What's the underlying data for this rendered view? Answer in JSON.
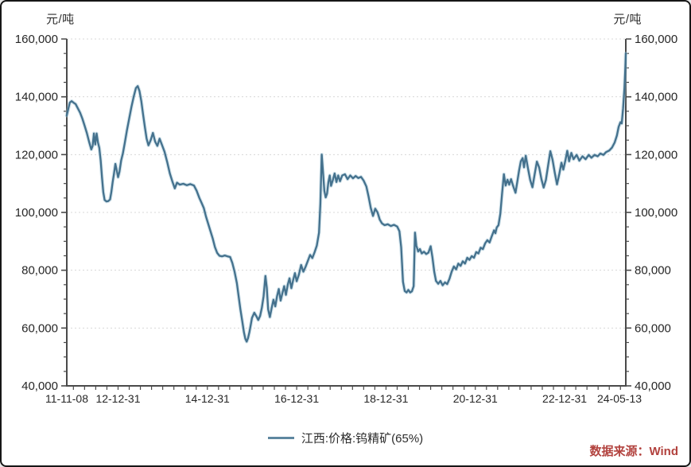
{
  "chart": {
    "unit_left": "元/吨",
    "unit_right": "元/吨"
  },
  "legend": {
    "label": "江西:价格:钨精矿(65%)",
    "color": "#5e87a0"
  },
  "source": {
    "label": "数据来源：Wind",
    "color": "#b2423e"
  },
  "axes": {
    "y_tick_labels": [
      "160,000",
      "140,000",
      "120,000",
      "100,000",
      "80,000",
      "60,000",
      "40,000"
    ],
    "y_tick_values": [
      160000,
      140000,
      120000,
      100000,
      80000,
      60000,
      40000
    ],
    "y_minor_step": 5000,
    "x_ticks": [
      {
        "label": "11-11-08",
        "year": 2011.852
      },
      {
        "label": "12-12-31",
        "year": 2013.0
      },
      {
        "label": "14-12-31",
        "year": 2015.0
      },
      {
        "label": "16-12-31",
        "year": 2017.0
      },
      {
        "label": "18-12-31",
        "year": 2019.0
      },
      {
        "label": "20-12-31",
        "year": 2021.0
      },
      {
        "label": "22-12-31",
        "year": 2023.0
      },
      {
        "label": "24-05-13",
        "year": 2024.37
      }
    ],
    "x_minor_step_years": 0.25
  },
  "chart_data": {
    "type": "line",
    "title": "",
    "xlabel": "",
    "ylabel": "元/吨",
    "ylim": [
      40000,
      160000
    ],
    "x_range_years": [
      2011.852,
      2024.37
    ],
    "x_range_dates": [
      "11-11-08",
      "24-05-13"
    ],
    "grid": "horizontal-dotted",
    "legend_position": "bottom-center",
    "line_color": "#44718d",
    "series": [
      {
        "name": "江西:价格:钨精矿(65%)",
        "points": [
          [
            2011.85,
            133500
          ],
          [
            2011.88,
            135500
          ],
          [
            2011.92,
            138000
          ],
          [
            2011.96,
            138500
          ],
          [
            2012.0,
            138000
          ],
          [
            2012.05,
            137500
          ],
          [
            2012.1,
            136000
          ],
          [
            2012.15,
            134500
          ],
          [
            2012.2,
            132500
          ],
          [
            2012.25,
            130000
          ],
          [
            2012.3,
            127500
          ],
          [
            2012.35,
            124500
          ],
          [
            2012.4,
            121800
          ],
          [
            2012.43,
            123000
          ],
          [
            2012.46,
            127300
          ],
          [
            2012.49,
            123500
          ],
          [
            2012.52,
            127300
          ],
          [
            2012.55,
            124200
          ],
          [
            2012.58,
            122300
          ],
          [
            2012.61,
            118000
          ],
          [
            2012.64,
            112000
          ],
          [
            2012.67,
            107000
          ],
          [
            2012.7,
            104300
          ],
          [
            2012.74,
            103800
          ],
          [
            2012.78,
            103900
          ],
          [
            2012.82,
            104500
          ],
          [
            2012.85,
            107000
          ],
          [
            2012.88,
            110500
          ],
          [
            2012.91,
            113500
          ],
          [
            2012.94,
            116800
          ],
          [
            2012.97,
            114500
          ],
          [
            2013.0,
            112200
          ],
          [
            2013.03,
            114000
          ],
          [
            2013.07,
            118000
          ],
          [
            2013.11,
            120500
          ],
          [
            2013.15,
            124000
          ],
          [
            2013.2,
            128500
          ],
          [
            2013.25,
            132500
          ],
          [
            2013.3,
            136500
          ],
          [
            2013.35,
            140000
          ],
          [
            2013.4,
            143000
          ],
          [
            2013.44,
            143700
          ],
          [
            2013.48,
            142000
          ],
          [
            2013.52,
            138500
          ],
          [
            2013.56,
            134000
          ],
          [
            2013.6,
            129500
          ],
          [
            2013.64,
            125500
          ],
          [
            2013.68,
            123200
          ],
          [
            2013.73,
            125000
          ],
          [
            2013.78,
            127500
          ],
          [
            2013.83,
            124500
          ],
          [
            2013.88,
            123000
          ],
          [
            2013.93,
            125500
          ],
          [
            2013.98,
            123500
          ],
          [
            2014.04,
            121000
          ],
          [
            2014.1,
            117500
          ],
          [
            2014.16,
            113500
          ],
          [
            2014.22,
            110500
          ],
          [
            2014.27,
            108300
          ],
          [
            2014.32,
            110300
          ],
          [
            2014.38,
            109600
          ],
          [
            2014.46,
            109900
          ],
          [
            2014.54,
            109400
          ],
          [
            2014.62,
            109800
          ],
          [
            2014.7,
            109300
          ],
          [
            2014.76,
            107500
          ],
          [
            2014.82,
            105000
          ],
          [
            2014.87,
            103300
          ],
          [
            2014.92,
            101500
          ],
          [
            2014.97,
            98500
          ],
          [
            2015.02,
            96000
          ],
          [
            2015.07,
            93500
          ],
          [
            2015.12,
            91000
          ],
          [
            2015.17,
            88000
          ],
          [
            2015.22,
            86000
          ],
          [
            2015.27,
            85000
          ],
          [
            2015.33,
            84800
          ],
          [
            2015.39,
            85100
          ],
          [
            2015.45,
            84800
          ],
          [
            2015.51,
            84600
          ],
          [
            2015.56,
            82500
          ],
          [
            2015.61,
            79500
          ],
          [
            2015.66,
            75500
          ],
          [
            2015.7,
            71000
          ],
          [
            2015.74,
            66500
          ],
          [
            2015.78,
            62500
          ],
          [
            2015.82,
            58500
          ],
          [
            2015.85,
            56300
          ],
          [
            2015.88,
            55300
          ],
          [
            2015.91,
            56500
          ],
          [
            2015.94,
            58500
          ],
          [
            2015.97,
            61000
          ],
          [
            2016.0,
            63500
          ],
          [
            2016.05,
            65300
          ],
          [
            2016.1,
            64000
          ],
          [
            2016.14,
            62800
          ],
          [
            2016.18,
            64200
          ],
          [
            2016.22,
            67000
          ],
          [
            2016.26,
            71000
          ],
          [
            2016.3,
            78000
          ],
          [
            2016.33,
            74000
          ],
          [
            2016.36,
            66500
          ],
          [
            2016.4,
            63800
          ],
          [
            2016.44,
            67000
          ],
          [
            2016.48,
            69800
          ],
          [
            2016.52,
            67500
          ],
          [
            2016.56,
            71000
          ],
          [
            2016.6,
            73500
          ],
          [
            2016.64,
            69500
          ],
          [
            2016.68,
            72000
          ],
          [
            2016.72,
            74500
          ],
          [
            2016.76,
            71500
          ],
          [
            2016.8,
            75000
          ],
          [
            2016.84,
            77200
          ],
          [
            2016.88,
            73800
          ],
          [
            2016.92,
            76500
          ],
          [
            2016.96,
            79000
          ],
          [
            2017.0,
            76200
          ],
          [
            2017.05,
            78500
          ],
          [
            2017.1,
            81800
          ],
          [
            2017.15,
            79500
          ],
          [
            2017.2,
            81200
          ],
          [
            2017.25,
            83200
          ],
          [
            2017.3,
            85300
          ],
          [
            2017.35,
            84200
          ],
          [
            2017.4,
            86200
          ],
          [
            2017.45,
            88500
          ],
          [
            2017.5,
            93000
          ],
          [
            2017.53,
            103000
          ],
          [
            2017.56,
            120000
          ],
          [
            2017.59,
            114000
          ],
          [
            2017.62,
            107500
          ],
          [
            2017.65,
            105200
          ],
          [
            2017.68,
            106500
          ],
          [
            2017.71,
            110500
          ],
          [
            2017.74,
            112800
          ],
          [
            2017.77,
            109200
          ],
          [
            2017.81,
            111200
          ],
          [
            2017.85,
            113500
          ],
          [
            2017.89,
            110500
          ],
          [
            2017.93,
            112800
          ],
          [
            2017.97,
            110800
          ],
          [
            2018.02,
            112800
          ],
          [
            2018.08,
            113200
          ],
          [
            2018.14,
            111500
          ],
          [
            2018.2,
            112800
          ],
          [
            2018.26,
            111800
          ],
          [
            2018.32,
            112600
          ],
          [
            2018.38,
            111900
          ],
          [
            2018.44,
            112300
          ],
          [
            2018.5,
            111000
          ],
          [
            2018.56,
            109000
          ],
          [
            2018.61,
            105500
          ],
          [
            2018.66,
            101500
          ],
          [
            2018.71,
            98800
          ],
          [
            2018.76,
            101300
          ],
          [
            2018.81,
            100000
          ],
          [
            2018.86,
            97500
          ],
          [
            2018.91,
            96200
          ],
          [
            2018.97,
            95600
          ],
          [
            2019.04,
            95900
          ],
          [
            2019.11,
            95300
          ],
          [
            2019.18,
            95700
          ],
          [
            2019.25,
            95100
          ],
          [
            2019.3,
            93500
          ],
          [
            2019.34,
            88000
          ],
          [
            2019.38,
            76000
          ],
          [
            2019.42,
            72800
          ],
          [
            2019.46,
            72300
          ],
          [
            2019.5,
            73200
          ],
          [
            2019.54,
            72300
          ],
          [
            2019.58,
            72700
          ],
          [
            2019.62,
            74500
          ],
          [
            2019.65,
            93000
          ],
          [
            2019.68,
            88500
          ],
          [
            2019.72,
            86500
          ],
          [
            2019.76,
            87300
          ],
          [
            2019.8,
            85800
          ],
          [
            2019.85,
            86400
          ],
          [
            2019.9,
            85600
          ],
          [
            2019.95,
            86100
          ],
          [
            2020.0,
            88300
          ],
          [
            2020.04,
            84500
          ],
          [
            2020.08,
            79500
          ],
          [
            2020.12,
            76300
          ],
          [
            2020.17,
            75300
          ],
          [
            2020.22,
            76300
          ],
          [
            2020.27,
            74800
          ],
          [
            2020.32,
            75800
          ],
          [
            2020.37,
            75200
          ],
          [
            2020.42,
            77000
          ],
          [
            2020.47,
            79500
          ],
          [
            2020.52,
            81300
          ],
          [
            2020.57,
            80300
          ],
          [
            2020.62,
            82300
          ],
          [
            2020.67,
            81500
          ],
          [
            2020.72,
            83100
          ],
          [
            2020.77,
            82300
          ],
          [
            2020.82,
            84300
          ],
          [
            2020.87,
            83600
          ],
          [
            2020.92,
            84900
          ],
          [
            2020.97,
            84300
          ],
          [
            2021.02,
            86300
          ],
          [
            2021.07,
            85800
          ],
          [
            2021.12,
            87800
          ],
          [
            2021.17,
            87300
          ],
          [
            2021.22,
            89300
          ],
          [
            2021.27,
            90400
          ],
          [
            2021.32,
            89600
          ],
          [
            2021.37,
            91800
          ],
          [
            2021.42,
            93800
          ],
          [
            2021.45,
            92800
          ],
          [
            2021.48,
            94800
          ],
          [
            2021.52,
            95600
          ],
          [
            2021.56,
            99500
          ],
          [
            2021.6,
            106500
          ],
          [
            2021.64,
            113200
          ],
          [
            2021.68,
            109300
          ],
          [
            2021.72,
            111300
          ],
          [
            2021.76,
            109600
          ],
          [
            2021.8,
            111500
          ],
          [
            2021.85,
            109000
          ],
          [
            2021.9,
            106800
          ],
          [
            2021.94,
            110500
          ],
          [
            2021.98,
            114500
          ],
          [
            2022.02,
            117700
          ],
          [
            2022.06,
            118800
          ],
          [
            2022.09,
            115600
          ],
          [
            2022.13,
            119600
          ],
          [
            2022.18,
            115200
          ],
          [
            2022.23,
            111200
          ],
          [
            2022.28,
            108700
          ],
          [
            2022.33,
            113200
          ],
          [
            2022.38,
            117600
          ],
          [
            2022.43,
            115500
          ],
          [
            2022.48,
            111500
          ],
          [
            2022.53,
            108600
          ],
          [
            2022.58,
            111200
          ],
          [
            2022.63,
            116200
          ],
          [
            2022.68,
            121200
          ],
          [
            2022.73,
            118200
          ],
          [
            2022.78,
            113700
          ],
          [
            2022.83,
            109700
          ],
          [
            2022.88,
            113200
          ],
          [
            2022.93,
            117200
          ],
          [
            2022.97,
            114800
          ],
          [
            2023.02,
            118200
          ],
          [
            2023.06,
            121300
          ],
          [
            2023.1,
            117700
          ],
          [
            2023.15,
            120600
          ],
          [
            2023.2,
            118400
          ],
          [
            2023.27,
            119900
          ],
          [
            2023.33,
            117900
          ],
          [
            2023.4,
            119400
          ],
          [
            2023.47,
            118400
          ],
          [
            2023.54,
            119900
          ],
          [
            2023.6,
            118900
          ],
          [
            2023.67,
            119900
          ],
          [
            2023.74,
            119400
          ],
          [
            2023.8,
            120400
          ],
          [
            2023.87,
            119900
          ],
          [
            2023.93,
            120900
          ],
          [
            2024.0,
            121400
          ],
          [
            2024.06,
            122400
          ],
          [
            2024.12,
            124200
          ],
          [
            2024.17,
            126600
          ],
          [
            2024.21,
            129600
          ],
          [
            2024.25,
            131200
          ],
          [
            2024.28,
            130800
          ],
          [
            2024.31,
            136000
          ],
          [
            2024.34,
            143000
          ],
          [
            2024.36,
            150000
          ],
          [
            2024.37,
            155000
          ]
        ]
      }
    ]
  }
}
